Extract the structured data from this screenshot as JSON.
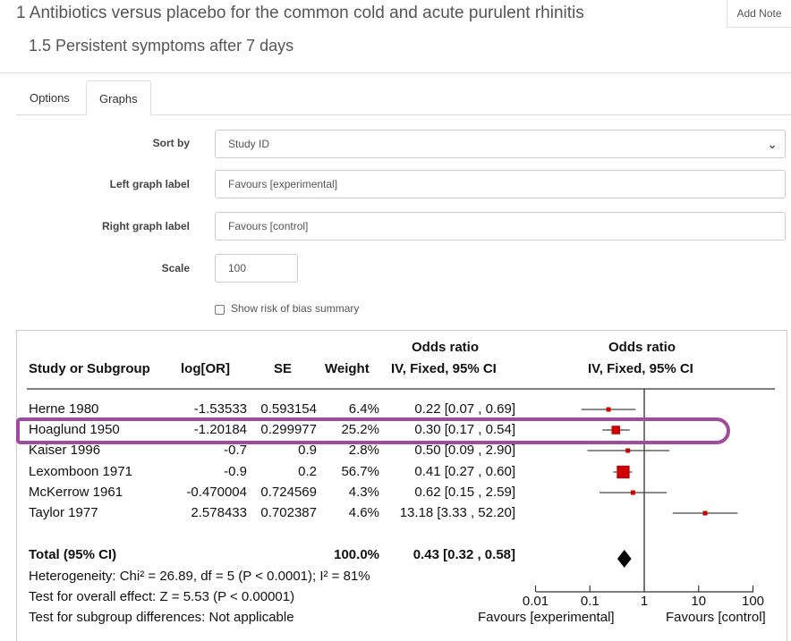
{
  "header": {
    "title": "1 Antibiotics versus placebo for the common cold and acute purulent rhinitis",
    "subtitle": "1.5 Persistent symptoms after 7 days",
    "add_note": "Add Note"
  },
  "tabs": [
    {
      "label": "Options"
    },
    {
      "label": "Graphs",
      "active": true
    }
  ],
  "form": {
    "sort_by": {
      "label": "Sort by",
      "value": "Study ID"
    },
    "left_label": {
      "label": "Left graph label",
      "value": "Favours [experimental]"
    },
    "right_label": {
      "label": "Right graph label",
      "value": "Favours [control]"
    },
    "scale": {
      "label": "Scale",
      "value": "100"
    },
    "risk_of_bias": {
      "label": "Show risk of bias summary",
      "checked": false
    }
  },
  "forest": {
    "headers": {
      "study": "Study or Subgroup",
      "log": "log[OR]",
      "se": "SE",
      "weight": "Weight",
      "or1": "Odds ratio",
      "or1b": "IV, Fixed, 95% CI",
      "or2": "Odds ratio",
      "or2b": "IV, Fixed, 95% CI"
    },
    "highlight_color": "#a24a9f",
    "marker_color": "#cc0000",
    "total": {
      "label": "Total (95% CI)",
      "weight": "100.0%",
      "ci": "0.43 [0.32 , 0.58]",
      "or": 0.43,
      "lo": 0.32,
      "hi": 0.58
    },
    "heterogeneity": "Heterogeneity: Chi² = 26.89, df = 5 (P < 0.0001); I² = 81%",
    "overall": "Test for overall effect: Z = 5.53 (P < 0.00001)",
    "subgroup": "Test for subgroup differences: Not applicable",
    "fav_left": "Favours [experimental]",
    "fav_right": "Favours [control]"
  },
  "chart_data": {
    "type": "scatter",
    "title": "Odds ratio IV, Fixed, 95% CI",
    "x_scale": "log",
    "xlim": [
      0.01,
      100
    ],
    "ticks": [
      "0.01",
      "0.1",
      "1",
      "10",
      "100"
    ],
    "studies": [
      {
        "name": "Herne 1980",
        "log": "-1.53533",
        "se": "0.593154",
        "weight": "6.4%",
        "ci": "0.22 [0.07 , 0.69]",
        "or": 0.22,
        "lo": 0.07,
        "hi": 0.69,
        "w": 6.4
      },
      {
        "name": "Hoaglund 1950",
        "log": "-1.20184",
        "se": "0.299977",
        "weight": "25.2%",
        "ci": "0.30 [0.17 , 0.54]",
        "or": 0.3,
        "lo": 0.17,
        "hi": 0.54,
        "w": 25.2
      },
      {
        "name": "Kaiser 1996",
        "log": "-0.7",
        "se": "0.9",
        "weight": "2.8%",
        "ci": "0.50 [0.09 , 2.90]",
        "or": 0.5,
        "lo": 0.09,
        "hi": 2.9,
        "w": 2.8
      },
      {
        "name": "Lexomboon 1971",
        "log": "-0.9",
        "se": "0.2",
        "weight": "56.7%",
        "ci": "0.41 [0.27 , 0.60]",
        "or": 0.41,
        "lo": 0.27,
        "hi": 0.6,
        "w": 56.7
      },
      {
        "name": "McKerrow 1961",
        "log": "-0.470004",
        "se": "0.724569",
        "weight": "4.3%",
        "ci": "0.62 [0.15 , 2.59]",
        "or": 0.62,
        "lo": 0.15,
        "hi": 2.59,
        "w": 4.3
      },
      {
        "name": "Taylor 1977",
        "log": "2.578433",
        "se": "0.702387",
        "weight": "4.6%",
        "ci": "13.18 [3.33 , 52.20]",
        "or": 13.18,
        "lo": 3.33,
        "hi": 52.2,
        "w": 4.6
      }
    ]
  }
}
